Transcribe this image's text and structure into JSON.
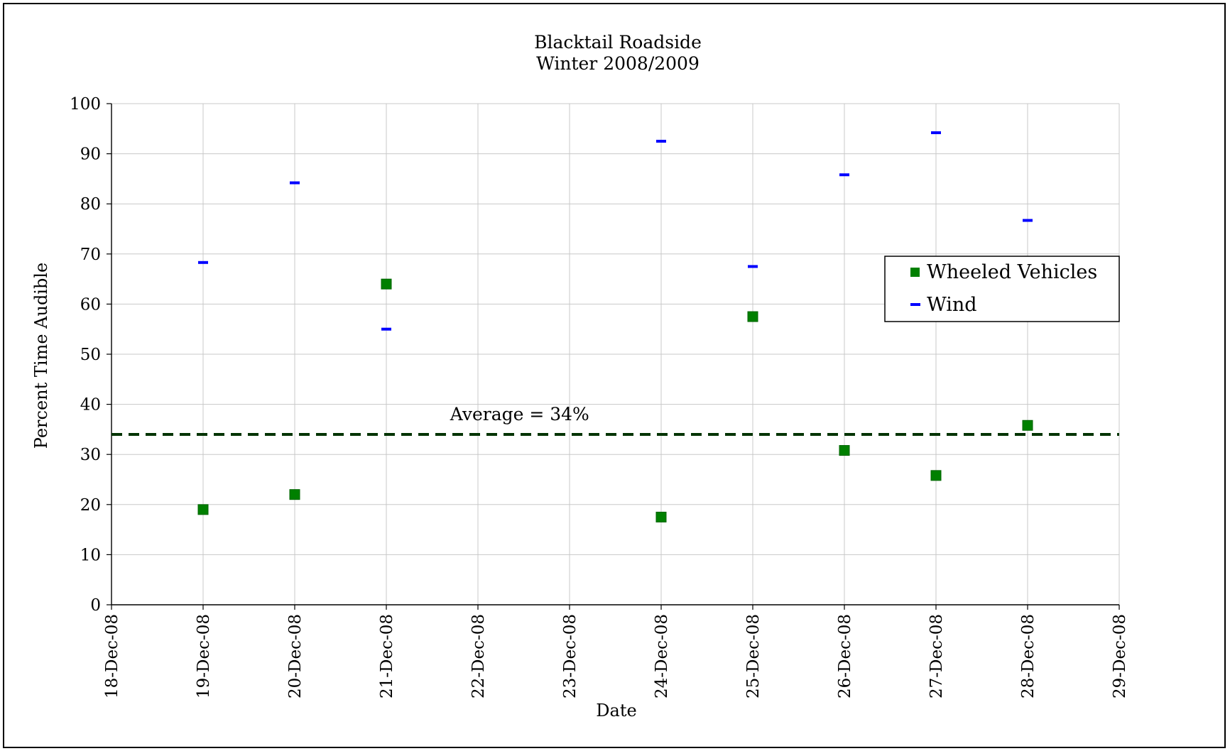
{
  "chart_data": {
    "type": "scatter",
    "title": "Blacktail Roadside",
    "subtitle": "Winter 2008/2009",
    "xlabel": "Date",
    "ylabel": "Percent Time Audible",
    "x_ticks": [
      "18-Dec-08",
      "19-Dec-08",
      "20-Dec-08",
      "21-Dec-08",
      "22-Dec-08",
      "23-Dec-08",
      "24-Dec-08",
      "25-Dec-08",
      "26-Dec-08",
      "27-Dec-08",
      "28-Dec-08",
      "29-Dec-08"
    ],
    "y_ticks": [
      "0",
      "10",
      "20",
      "30",
      "40",
      "50",
      "60",
      "70",
      "80",
      "90",
      "100"
    ],
    "ylim": [
      0,
      100
    ],
    "xlim": [
      "18-Dec-08",
      "29-Dec-08"
    ],
    "grid": true,
    "legend_position": "right",
    "series": [
      {
        "name": "Wheeled Vehicles",
        "marker": "square",
        "color": "#008000",
        "points": [
          {
            "x": "19-Dec-08",
            "y": 19
          },
          {
            "x": "20-Dec-08",
            "y": 22
          },
          {
            "x": "21-Dec-08",
            "y": 64
          },
          {
            "x": "24-Dec-08",
            "y": 17.5
          },
          {
            "x": "25-Dec-08",
            "y": 57.5
          },
          {
            "x": "26-Dec-08",
            "y": 30.8
          },
          {
            "x": "27-Dec-08",
            "y": 25.8
          },
          {
            "x": "28-Dec-08",
            "y": 35.8
          }
        ]
      },
      {
        "name": "Wind",
        "marker": "dash",
        "color": "#0000ff",
        "points": [
          {
            "x": "19-Dec-08",
            "y": 68.3
          },
          {
            "x": "20-Dec-08",
            "y": 84.2
          },
          {
            "x": "21-Dec-08",
            "y": 55
          },
          {
            "x": "24-Dec-08",
            "y": 92.5
          },
          {
            "x": "25-Dec-08",
            "y": 67.5
          },
          {
            "x": "26-Dec-08",
            "y": 85.8
          },
          {
            "x": "27-Dec-08",
            "y": 94.2
          },
          {
            "x": "28-Dec-08",
            "y": 76.7
          }
        ]
      }
    ],
    "reference_line": {
      "y": 34,
      "label": "Average = 34%",
      "style": "dashed",
      "color": "#003300"
    }
  }
}
